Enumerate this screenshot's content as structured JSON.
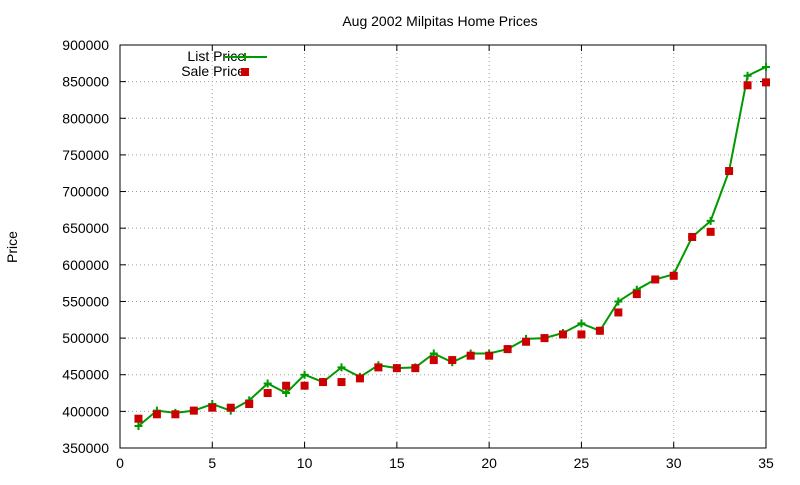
{
  "chart_data": {
    "type": "line",
    "title": "Aug 2002 Milpitas Home Prices",
    "xlabel": "",
    "ylabel": "Price",
    "xlim": [
      0,
      35
    ],
    "ylim": [
      350000,
      900000
    ],
    "x_ticks": [
      0,
      5,
      10,
      15,
      20,
      25,
      30,
      35
    ],
    "y_ticks": [
      350000,
      400000,
      450000,
      500000,
      550000,
      600000,
      650000,
      700000,
      750000,
      800000,
      850000,
      900000
    ],
    "grid": true,
    "legend_position": "top-left",
    "x": [
      1,
      2,
      3,
      4,
      5,
      6,
      7,
      8,
      9,
      10,
      11,
      12,
      13,
      14,
      15,
      16,
      17,
      18,
      19,
      20,
      21,
      22,
      23,
      24,
      25,
      26,
      27,
      28,
      29,
      30,
      31,
      32,
      33,
      34,
      35
    ],
    "series": [
      {
        "name": "List Price",
        "style": "line-with-plus-markers",
        "color": "#009900",
        "values": [
          380000,
          401000,
          398000,
          401000,
          410000,
          401000,
          415000,
          438000,
          425000,
          450000,
          440000,
          460000,
          447000,
          463000,
          459000,
          460000,
          479000,
          467000,
          479000,
          479000,
          485000,
          499000,
          500000,
          507000,
          520000,
          510000,
          550000,
          566000,
          580000,
          587000,
          638000,
          660000,
          728000,
          858000,
          870000
        ]
      },
      {
        "name": "Sale Price",
        "style": "square-markers",
        "color": "#cc0000",
        "values": [
          390000,
          396000,
          396000,
          401000,
          405000,
          405000,
          410000,
          425000,
          435000,
          435000,
          440000,
          440000,
          445000,
          460000,
          459000,
          459000,
          470000,
          470000,
          476000,
          476000,
          485000,
          495000,
          500000,
          505000,
          505000,
          510000,
          535000,
          560000,
          580000,
          585000,
          638000,
          645000,
          728000,
          845000,
          849000
        ]
      }
    ]
  }
}
